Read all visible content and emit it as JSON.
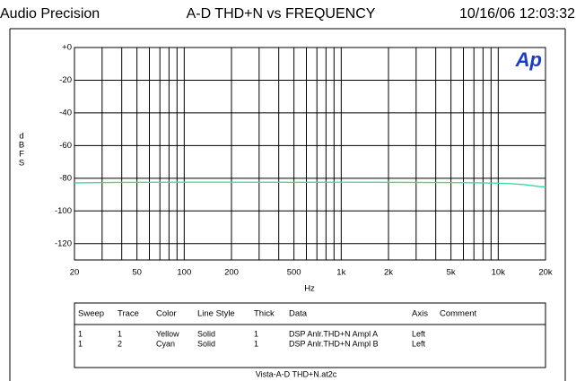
{
  "chart_data": {
    "type": "line",
    "brand": "Audio Precision",
    "title": "A-D THD+N vs FREQUENCY",
    "timestamp": "10/16/06 12:03:32",
    "logo": "Ap",
    "x_label": "Hz",
    "y_label": [
      "d",
      "B",
      "F",
      "S"
    ],
    "log_x": true,
    "grid": true,
    "xlim": [
      20,
      20000
    ],
    "ylim": [
      -130,
      0
    ],
    "xticks": [
      20,
      50,
      100,
      200,
      500,
      {
        "value": 1000,
        "label": "1k"
      },
      {
        "value": 2000,
        "label": "2k"
      },
      {
        "value": 5000,
        "label": "5k"
      },
      {
        "value": 10000,
        "label": "10k"
      },
      {
        "value": 20000,
        "label": "20k"
      }
    ],
    "xgrid": [
      20,
      30,
      40,
      50,
      60,
      70,
      80,
      90,
      100,
      200,
      300,
      400,
      500,
      600,
      700,
      800,
      900,
      1000,
      2000,
      3000,
      4000,
      5000,
      6000,
      7000,
      8000,
      9000,
      10000,
      20000
    ],
    "yticks": [
      {
        "value": 0,
        "label": "+0"
      },
      -20,
      -40,
      -60,
      -80,
      -100,
      -120
    ],
    "x": [
      20,
      30,
      50,
      100,
      200,
      500,
      1000,
      2000,
      5000,
      8000,
      10000,
      12000,
      15000,
      18000,
      20000
    ],
    "series": [
      {
        "name": "Yellow",
        "color": "#e8e040",
        "values": [
          -82.8,
          -82.6,
          -82.5,
          -82.4,
          -82.4,
          -82.5,
          -82.4,
          -82.5,
          -82.6,
          -82.8,
          -83.0,
          -83.3,
          -84.0,
          -85.0,
          -85.3
        ]
      },
      {
        "name": "Cyan",
        "color": "#30d8b0",
        "values": [
          -82.8,
          -82.6,
          -82.5,
          -82.4,
          -82.4,
          -82.5,
          -82.4,
          -82.5,
          -82.6,
          -82.8,
          -83.0,
          -83.3,
          -84.0,
          -85.0,
          -85.3
        ]
      }
    ],
    "legend_table": {
      "headers": [
        "Sweep",
        "Trace",
        "Color",
        "Line Style",
        "Thick",
        "Data",
        "Axis",
        "Comment"
      ],
      "rows": [
        [
          "1",
          "1",
          "Yellow",
          "Solid",
          "1",
          "DSP Anlr.THD+N Ampl A",
          "Left"
        ],
        [
          "1",
          "2",
          "Cyan",
          "Solid",
          "1",
          "DSP Anlr.THD+N Ampl B",
          "Left"
        ]
      ]
    },
    "footer": "Vista-A-D THD+N.at2c"
  }
}
